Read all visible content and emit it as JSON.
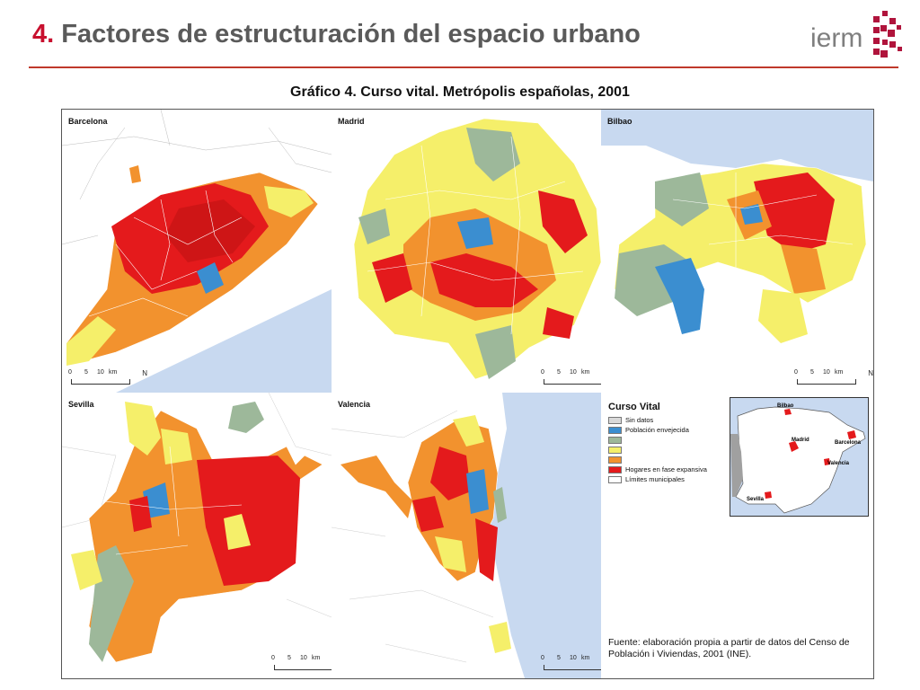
{
  "header": {
    "title_number": "4.",
    "title_text": "Factores de estructuración del espacio urbano",
    "logo_text": "ierm"
  },
  "chart_title": "Gráfico 4. Curso vital. Metrópolis españolas, 2001",
  "panels": {
    "barcelona": {
      "label": "Barcelona"
    },
    "madrid": {
      "label": "Madrid"
    },
    "bilbao": {
      "label": "Bilbao"
    },
    "sevilla": {
      "label": "Sevilla"
    },
    "valencia": {
      "label": "Valencia"
    }
  },
  "scalebar": {
    "t0": "0",
    "t5": "5",
    "t10": "10",
    "unit": "km",
    "north": "N"
  },
  "legend": {
    "title": "Curso Vital",
    "items": [
      {
        "label": "Sin datos",
        "color": "#d9d9d9"
      },
      {
        "label": "Población envejecida",
        "color": "#3b8ed0"
      },
      {
        "label": "",
        "color": "#9db89a"
      },
      {
        "label": "",
        "color": "#f5ef6a"
      },
      {
        "label": "",
        "color": "#f2922e"
      },
      {
        "label": "Hogares en fase expansiva",
        "color": "#e41a1c"
      },
      {
        "label": "Límites municipales",
        "color": "#ffffff"
      }
    ]
  },
  "inset": {
    "labels": {
      "bilbao": "Bilbao",
      "madrid": "Madrid",
      "barcelona": "Barcelona",
      "valencia": "Valencia",
      "sevilla": "Sevilla"
    }
  },
  "source_note": "Fuente: elaboración propia a partir de datos del Censo de Población i Viviendas, 2001 (INE).",
  "colors": {
    "accent": "#c8102e",
    "sea": "#c8d9f0",
    "grey_green": "#9db89a",
    "yellow": "#f5ef6a",
    "orange": "#f2922e",
    "red": "#e41a1c",
    "blue": "#3b8ed0"
  }
}
